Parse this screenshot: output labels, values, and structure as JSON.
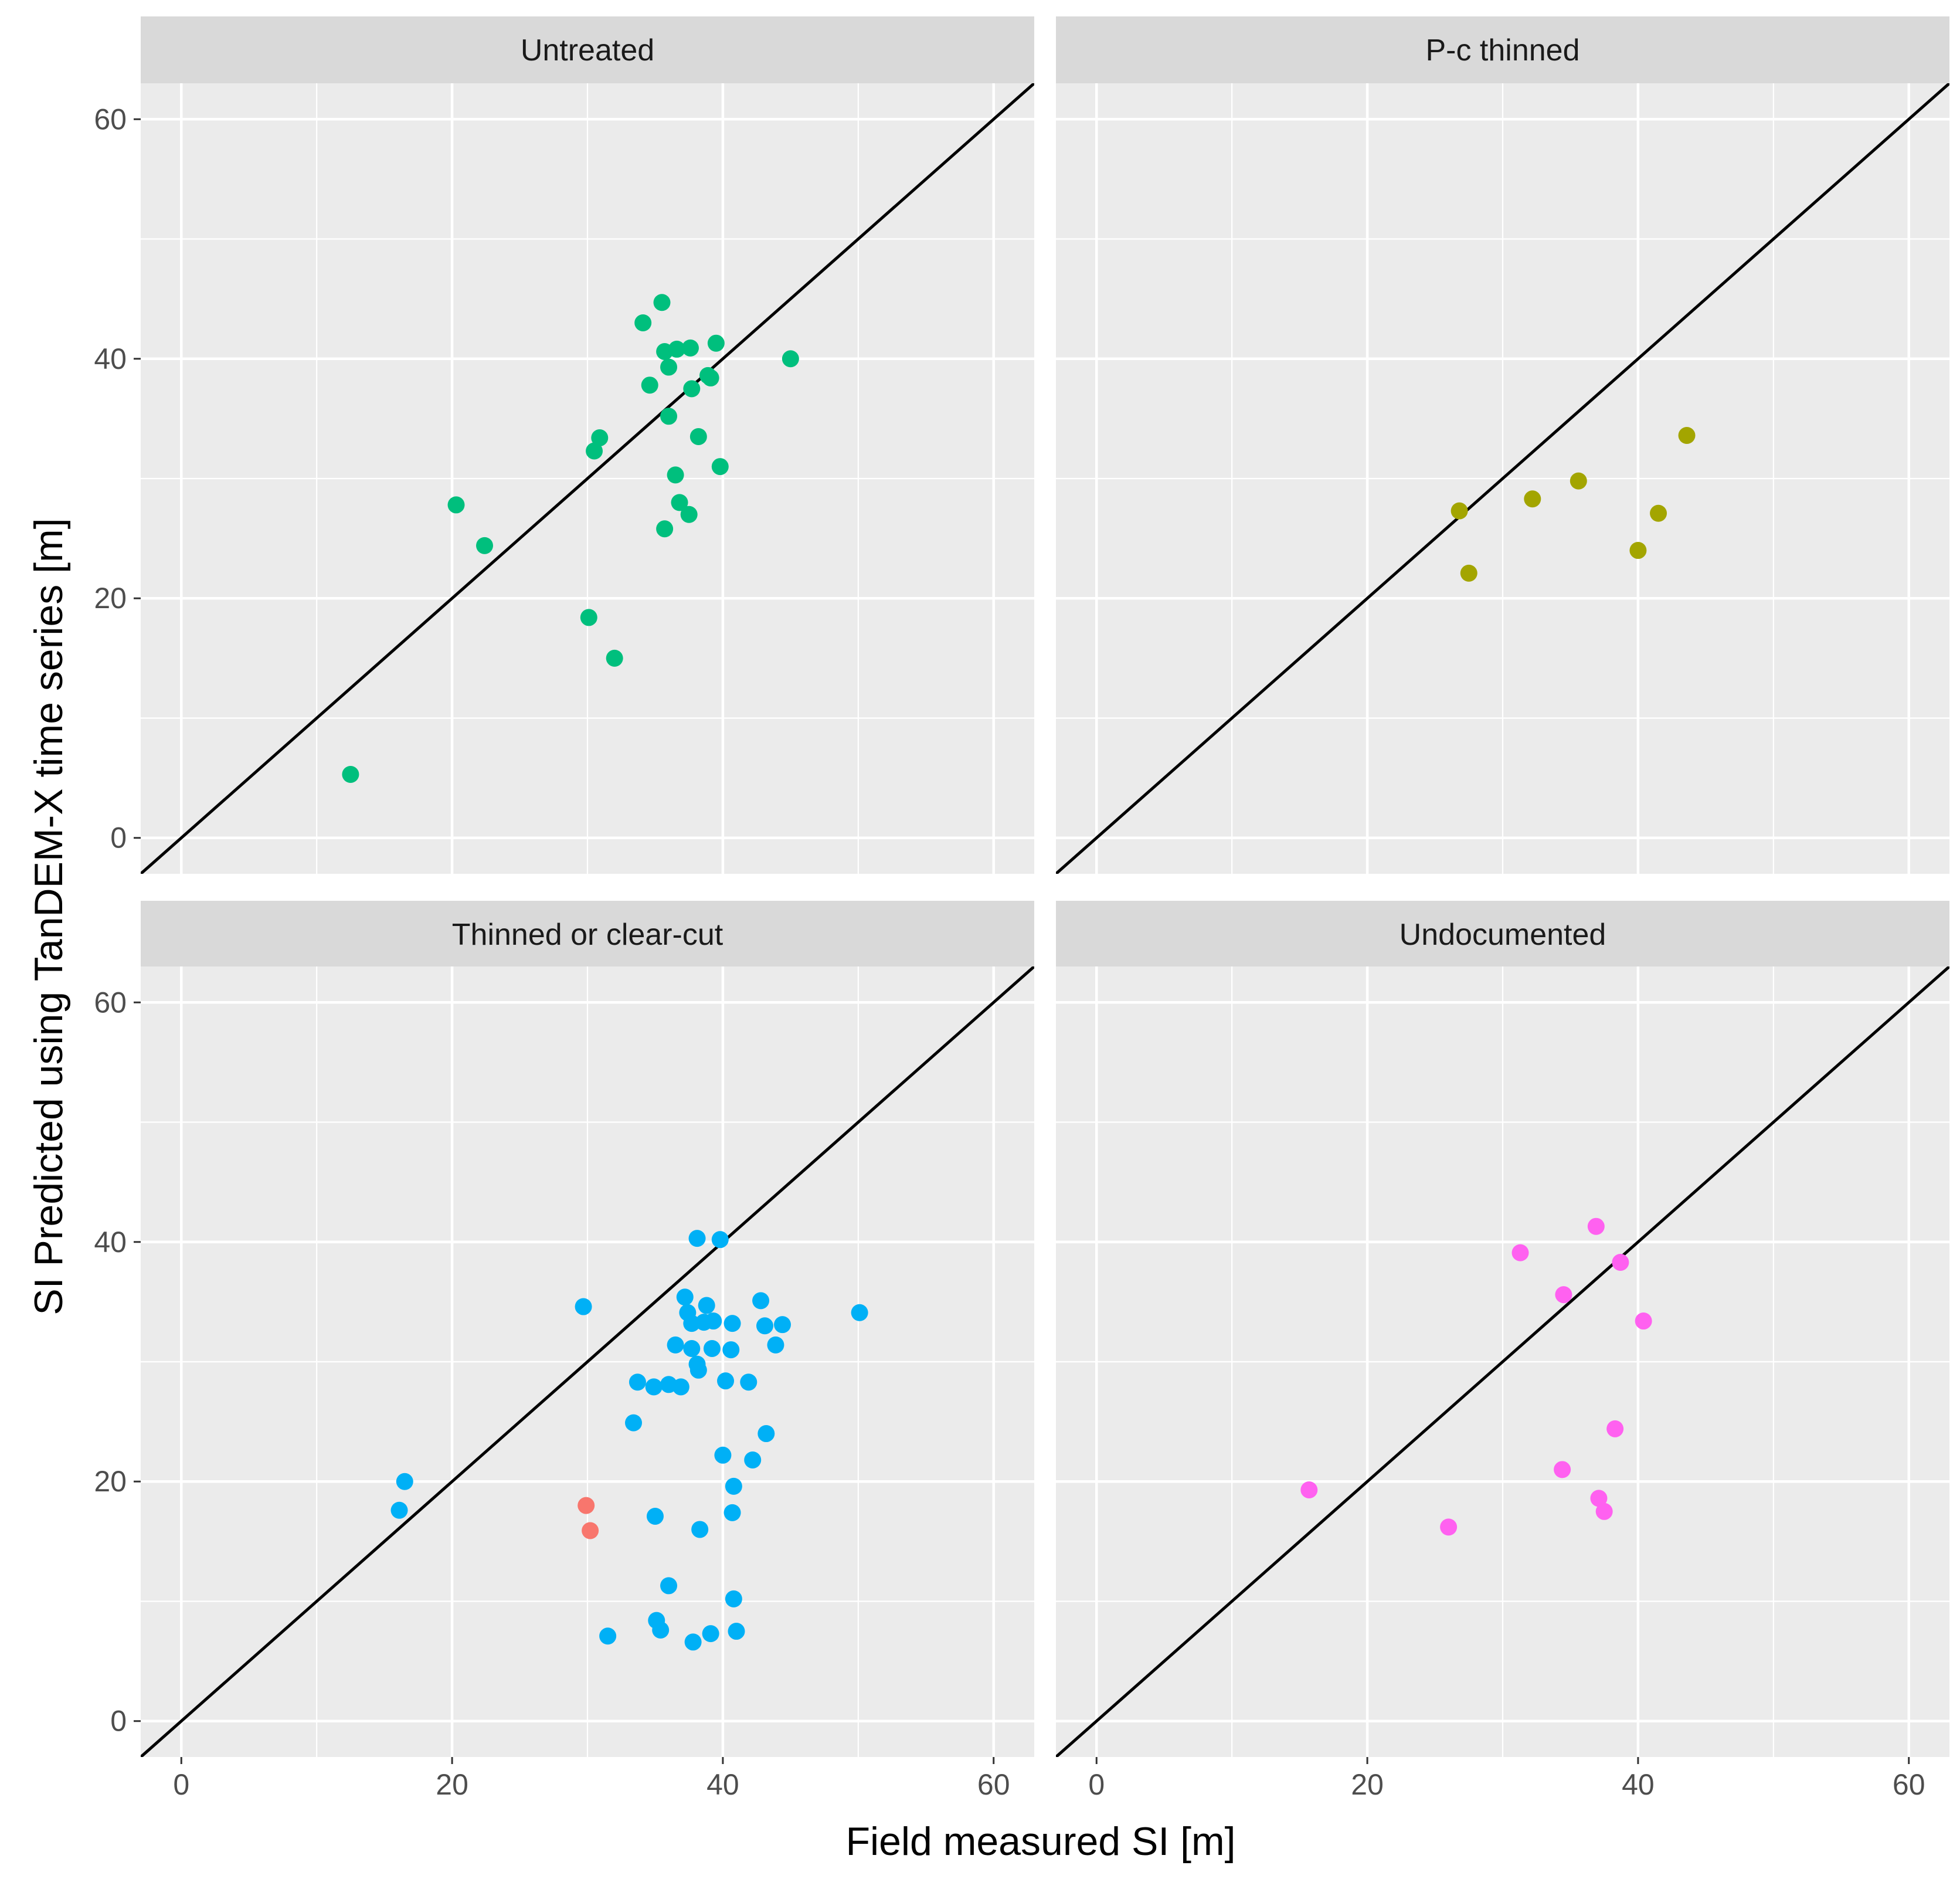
{
  "chart_data": {
    "type": "scatter",
    "layout": "facet_wrap 2x2",
    "xlabel": "Field measured SI [m]",
    "ylabel": "SI Predicted using TanDEM-X time series [m]",
    "xlim": [
      -3,
      63
    ],
    "ylim": [
      -3,
      63
    ],
    "x_ticks": [
      "0",
      "20",
      "40",
      "60"
    ],
    "y_ticks": [
      "0",
      "20",
      "40",
      "60"
    ],
    "tick_values": [
      0,
      20,
      40,
      60
    ],
    "reference_line": "y = x",
    "panels": [
      {
        "title": "Untreated",
        "series": [
          {
            "name": "Untreated",
            "color": "#00BF7D",
            "points": [
              [
                12.5,
                5.3
              ],
              [
                20.3,
                27.8
              ],
              [
                22.4,
                24.4
              ],
              [
                30.1,
                18.4
              ],
              [
                30.5,
                32.3
              ],
              [
                30.9,
                33.4
              ],
              [
                32.0,
                15.0
              ],
              [
                34.1,
                43.0
              ],
              [
                34.6,
                37.8
              ],
              [
                35.5,
                44.7
              ],
              [
                35.7,
                40.6
              ],
              [
                35.7,
                25.8
              ],
              [
                36.0,
                39.3
              ],
              [
                36.0,
                35.2
              ],
              [
                36.5,
                30.3
              ],
              [
                36.6,
                40.8
              ],
              [
                36.8,
                28.0
              ],
              [
                37.5,
                27.0
              ],
              [
                37.6,
                40.9
              ],
              [
                37.7,
                37.5
              ],
              [
                38.2,
                33.5
              ],
              [
                38.9,
                38.6
              ],
              [
                39.1,
                38.4
              ],
              [
                39.5,
                41.3
              ],
              [
                39.8,
                31.0
              ],
              [
                45.0,
                40.0
              ]
            ]
          }
        ]
      },
      {
        "title": "P-c thinned",
        "series": [
          {
            "name": "P-c thinned",
            "color": "#A3A500",
            "points": [
              [
                26.8,
                27.3
              ],
              [
                27.5,
                22.1
              ],
              [
                32.2,
                28.3
              ],
              [
                35.6,
                29.8
              ],
              [
                40.0,
                24.0
              ],
              [
                41.5,
                27.1
              ],
              [
                43.6,
                33.6
              ]
            ]
          }
        ]
      },
      {
        "title": "Thinned or clear-cut",
        "series": [
          {
            "name": "Thinned or clear-cut",
            "color": "#00B0F6",
            "points": [
              [
                16.1,
                17.6
              ],
              [
                16.5,
                20.0
              ],
              [
                29.7,
                34.6
              ],
              [
                31.5,
                7.1
              ],
              [
                33.4,
                24.9
              ],
              [
                33.7,
                28.3
              ],
              [
                34.9,
                27.9
              ],
              [
                35.0,
                17.1
              ],
              [
                35.1,
                8.4
              ],
              [
                35.4,
                7.6
              ],
              [
                36.0,
                28.1
              ],
              [
                36.0,
                11.3
              ],
              [
                36.5,
                31.4
              ],
              [
                36.9,
                27.9
              ],
              [
                37.2,
                35.4
              ],
              [
                37.4,
                34.1
              ],
              [
                37.7,
                33.2
              ],
              [
                37.7,
                31.1
              ],
              [
                37.8,
                6.6
              ],
              [
                38.1,
                40.3
              ],
              [
                38.1,
                29.8
              ],
              [
                38.2,
                29.3
              ],
              [
                38.3,
                16.0
              ],
              [
                38.6,
                33.3
              ],
              [
                38.8,
                34.7
              ],
              [
                39.1,
                7.3
              ],
              [
                39.2,
                31.1
              ],
              [
                39.3,
                33.4
              ],
              [
                39.8,
                40.2
              ],
              [
                40.0,
                22.2
              ],
              [
                40.2,
                28.4
              ],
              [
                40.6,
                31.0
              ],
              [
                40.7,
                33.2
              ],
              [
                40.7,
                17.4
              ],
              [
                40.8,
                19.6
              ],
              [
                40.8,
                10.2
              ],
              [
                41.0,
                7.5
              ],
              [
                41.9,
                28.3
              ],
              [
                42.2,
                21.8
              ],
              [
                42.8,
                35.1
              ],
              [
                43.1,
                33.0
              ],
              [
                43.2,
                24.0
              ],
              [
                43.9,
                31.4
              ],
              [
                44.4,
                33.1
              ],
              [
                50.1,
                34.1
              ]
            ]
          },
          {
            "name": "Thinned or clear-cut (red)",
            "color": "#F8766D",
            "points": [
              [
                29.9,
                18.0
              ],
              [
                30.2,
                15.9
              ]
            ]
          }
        ]
      },
      {
        "title": "Undocumented",
        "series": [
          {
            "name": "Undocumented",
            "color": "#FF61F0",
            "points": [
              [
                15.7,
                19.3
              ],
              [
                26.0,
                16.2
              ],
              [
                31.3,
                39.1
              ],
              [
                34.4,
                21.0
              ],
              [
                34.5,
                35.6
              ],
              [
                36.9,
                41.3
              ],
              [
                37.1,
                18.6
              ],
              [
                37.5,
                17.5
              ],
              [
                38.3,
                24.4
              ],
              [
                38.7,
                38.3
              ],
              [
                40.4,
                33.4
              ]
            ]
          }
        ]
      }
    ]
  }
}
